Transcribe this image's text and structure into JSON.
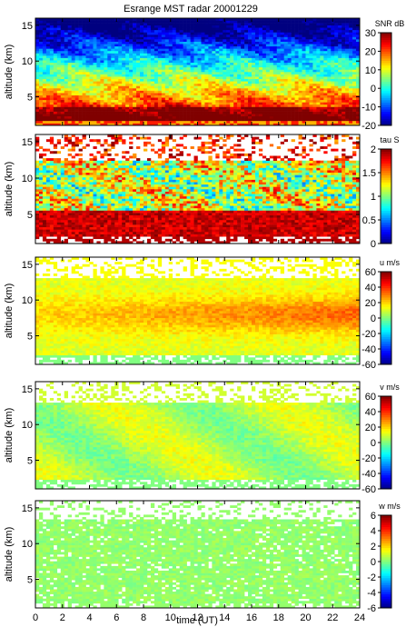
{
  "title": "Esrange MST radar 20001229",
  "xlabel": "time (UT)",
  "ylabel": "altitude (km)",
  "chart_data": [
    {
      "type": "heatmap",
      "quantity": "SNR",
      "colorbar_label": "SNR dB",
      "clim": [
        -20,
        30
      ],
      "colorbar_ticks": [
        -20,
        -10,
        0,
        10,
        20,
        30
      ],
      "xlim": [
        0,
        24
      ],
      "ylim": [
        1,
        16
      ],
      "yticks": [
        5,
        10,
        15
      ],
      "ylabel": "altitude (km)"
    },
    {
      "type": "heatmap",
      "quantity": "tau",
      "colorbar_label": "tau S",
      "clim": [
        0,
        2
      ],
      "colorbar_ticks": [
        0,
        0.5,
        1,
        1.5,
        2
      ],
      "xlim": [
        0,
        24
      ],
      "ylim": [
        1,
        16
      ],
      "yticks": [
        5,
        10,
        15
      ],
      "ylabel": "altitude (km)"
    },
    {
      "type": "heatmap",
      "quantity": "u",
      "colorbar_label": "u m/s",
      "clim": [
        -60,
        60
      ],
      "colorbar_ticks": [
        -60,
        -40,
        -20,
        0,
        20,
        40,
        60
      ],
      "xlim": [
        0,
        24
      ],
      "ylim": [
        1,
        16
      ],
      "yticks": [
        5,
        10,
        15
      ],
      "ylabel": "altitude (km)"
    },
    {
      "type": "heatmap",
      "quantity": "v",
      "colorbar_label": "v m/s",
      "clim": [
        -60,
        60
      ],
      "colorbar_ticks": [
        -60,
        -40,
        -20,
        0,
        20,
        40,
        60
      ],
      "xlim": [
        0,
        24
      ],
      "ylim": [
        1,
        16
      ],
      "yticks": [
        5,
        10,
        15
      ],
      "ylabel": "altitude (km)"
    },
    {
      "type": "heatmap",
      "quantity": "w",
      "colorbar_label": "w m/s",
      "clim": [
        -6,
        6
      ],
      "colorbar_ticks": [
        -6,
        -4,
        -2,
        0,
        2,
        4,
        6
      ],
      "xlim": [
        0,
        24
      ],
      "ylim": [
        1,
        16
      ],
      "yticks": [
        5,
        10,
        15
      ],
      "xticks": [
        0,
        2,
        4,
        6,
        8,
        10,
        12,
        14,
        16,
        18,
        20,
        22,
        24
      ],
      "xlabel": "time (UT)",
      "ylabel": "altitude (km)"
    }
  ]
}
